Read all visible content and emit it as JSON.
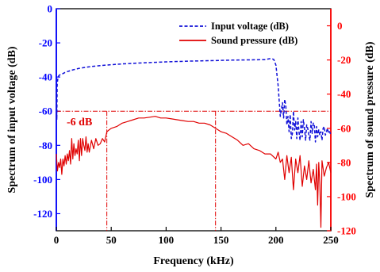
{
  "chart_data": {
    "type": "line",
    "xlabel": "Frequency (kHz)",
    "ylabel_left": "Spectrum of input voltage (dB)",
    "ylabel_right": "Spectrum of sound pressure (dB)",
    "xlim": [
      0,
      250
    ],
    "ylim_left": [
      -130,
      0
    ],
    "ylim_right": [
      -120,
      10
    ],
    "x_ticks": [
      0,
      50,
      100,
      150,
      200,
      250
    ],
    "y_left_ticks": [
      0,
      -20,
      -40,
      -60,
      -80,
      -100,
      -120
    ],
    "y_right_ticks": [
      0,
      -20,
      -40,
      -60,
      -80,
      -100,
      -120
    ],
    "colors": {
      "left_axis": "#0000ff",
      "right_axis": "#ff0000",
      "input": "#1010d8",
      "sound": "#e00000"
    },
    "legend_position": "top-right",
    "annotation": {
      "text": "-6 dB",
      "level_left": -60,
      "bandwidth_x": [
        46,
        145
      ]
    },
    "series": [
      {
        "name": "Input voltage (dB)",
        "axis": "left",
        "style": "dashed",
        "x": [
          0,
          0.4,
          0.8,
          1.5,
          2.5,
          4,
          6,
          8,
          10,
          15,
          20,
          30,
          40,
          50,
          60,
          75,
          90,
          100,
          120,
          140,
          160,
          180,
          190,
          195,
          198,
          200,
          202,
          204,
          206,
          207,
          208,
          209,
          210,
          211,
          212,
          213,
          214,
          215,
          216,
          217,
          218,
          219,
          220,
          221,
          222,
          223,
          224,
          225,
          226,
          227,
          228,
          229,
          230,
          231,
          232,
          233,
          234,
          235,
          236,
          237,
          238,
          239,
          240,
          241,
          242,
          243,
          244,
          245,
          246,
          247,
          248,
          249,
          250
        ],
        "y": [
          -48,
          -65,
          -44,
          -40,
          -39,
          -38.5,
          -38,
          -37.3,
          -36.8,
          -35.8,
          -35.0,
          -34.0,
          -33.3,
          -32.8,
          -32.3,
          -31.8,
          -31.4,
          -31.1,
          -30.7,
          -30.4,
          -30.1,
          -29.9,
          -29.8,
          -29.2,
          -29.6,
          -33,
          -45,
          -63,
          -55,
          -64,
          -53,
          -57,
          -68,
          -63,
          -72,
          -62,
          -76,
          -73,
          -60,
          -71,
          -66,
          -76,
          -64,
          -72,
          -77,
          -66,
          -75,
          -65,
          -70,
          -77,
          -68,
          -70,
          -74,
          -77,
          -66,
          -73,
          -67,
          -68,
          -78,
          -69,
          -75,
          -71,
          -74,
          -72,
          -77,
          -70,
          -69,
          -74,
          -72,
          -70,
          -73,
          -72,
          -74
        ]
      },
      {
        "name": "Sound pressure (dB)",
        "axis": "right",
        "style": "solid",
        "x": [
          0,
          1,
          2,
          3,
          4,
          5,
          6,
          7,
          8,
          9,
          10,
          11,
          12,
          13,
          14,
          15,
          16,
          17,
          18,
          19,
          20,
          21,
          22,
          23,
          24,
          25,
          26,
          27,
          28,
          29,
          30,
          32,
          34,
          36,
          38,
          40,
          42,
          44,
          46,
          48,
          50,
          55,
          60,
          65,
          70,
          75,
          80,
          85,
          90,
          95,
          100,
          105,
          110,
          115,
          120,
          125,
          130,
          135,
          140,
          145,
          150,
          155,
          160,
          165,
          170,
          175,
          180,
          185,
          190,
          195,
          200,
          202,
          204,
          206,
          208,
          210,
          212,
          214,
          216,
          218,
          220,
          222,
          224,
          226,
          228,
          230,
          232,
          234,
          236,
          237,
          238,
          239,
          240,
          241,
          242,
          244,
          246,
          248,
          250
        ],
        "y": [
          -75,
          -85,
          -80,
          -83,
          -78,
          -87,
          -78,
          -82,
          -76,
          -81,
          -75,
          -79,
          -73,
          -81,
          -66,
          -78,
          -69,
          -76,
          -72,
          -75,
          -67,
          -79,
          -66,
          -76,
          -66,
          -70,
          -73,
          -65,
          -74,
          -69,
          -74,
          -67,
          -72,
          -66,
          -70,
          -69,
          -66,
          -68,
          -62,
          -61,
          -60,
          -59,
          -57,
          -56,
          -55,
          -54,
          -54,
          -53.5,
          -53,
          -54,
          -54,
          -54.5,
          -55,
          -55.5,
          -56,
          -56,
          -57,
          -57,
          -58,
          -60,
          -62,
          -63,
          -65,
          -67,
          -70,
          -69,
          -72,
          -73,
          -75,
          -75,
          -78,
          -74,
          -80,
          -78,
          -90,
          -76,
          -86,
          -77,
          -96,
          -78,
          -86,
          -76,
          -94,
          -82,
          -90,
          -79,
          -92,
          -84,
          -96,
          -81,
          -105,
          -80,
          -93,
          -118,
          -79,
          -88,
          -83,
          -80,
          -86
        ]
      }
    ]
  }
}
